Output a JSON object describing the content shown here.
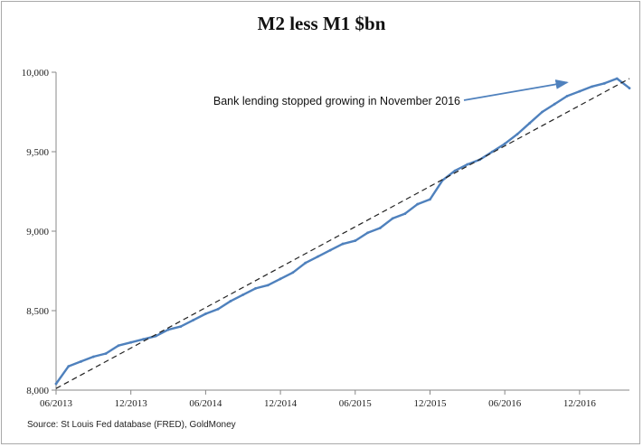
{
  "chart_data": {
    "type": "line",
    "title": "M2 less M1 $bn",
    "xlabel": "",
    "ylabel": "",
    "ylim": [
      8000,
      10000
    ],
    "xlim": [
      "2013-06",
      "2017-04"
    ],
    "y_ticks": [
      "8,000",
      "8,500",
      "9,000",
      "9,500",
      "10,000"
    ],
    "x_ticks": [
      "06/2013",
      "12/2013",
      "06/2014",
      "12/2014",
      "06/2015",
      "12/2015",
      "06/2016",
      "12/2016"
    ],
    "grid": false,
    "series": [
      {
        "color": "#4f81bd",
        "style": "solid",
        "x": [
          "2013-06",
          "2013-07",
          "2013-08",
          "2013-09",
          "2013-10",
          "2013-11",
          "2013-12",
          "2014-01",
          "2014-02",
          "2014-03",
          "2014-04",
          "2014-05",
          "2014-06",
          "2014-07",
          "2014-08",
          "2014-09",
          "2014-10",
          "2014-11",
          "2014-12",
          "2015-01",
          "2015-02",
          "2015-03",
          "2015-04",
          "2015-05",
          "2015-06",
          "2015-07",
          "2015-08",
          "2015-09",
          "2015-10",
          "2015-11",
          "2015-12",
          "2016-01",
          "2016-02",
          "2016-03",
          "2016-04",
          "2016-05",
          "2016-06",
          "2016-07",
          "2016-08",
          "2016-09",
          "2016-10",
          "2016-11",
          "2016-12",
          "2017-01",
          "2017-02",
          "2017-03",
          "2017-04"
        ],
        "values": [
          8040,
          8150,
          8180,
          8210,
          8230,
          8280,
          8300,
          8320,
          8340,
          8380,
          8400,
          8440,
          8480,
          8510,
          8560,
          8600,
          8640,
          8660,
          8700,
          8740,
          8800,
          8840,
          8880,
          8920,
          8940,
          8990,
          9020,
          9080,
          9110,
          9170,
          9200,
          9320,
          9380,
          9420,
          9450,
          9500,
          9550,
          9610,
          9680,
          9750,
          9800,
          9850,
          9880,
          9910,
          9930,
          9960,
          9900
        ]
      },
      {
        "color": "#222222",
        "style": "dashed",
        "x": [
          "2013-06",
          "2017-04"
        ],
        "values": [
          8010,
          9960
        ]
      }
    ],
    "annotations": [
      {
        "text": "Bank lending stopped growing in November 2016",
        "points_to": [
          "2016-11",
          9970
        ]
      }
    ]
  },
  "source": "Source: St Louis Fed  database (FRED), GoldMoney"
}
